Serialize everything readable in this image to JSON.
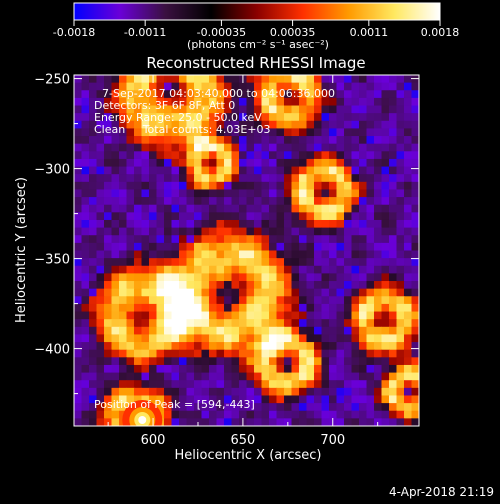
{
  "colorbar": {
    "ticks": [
      "-0.0018",
      "-0.0011",
      "-0.00035",
      "0.00035",
      "0.0011",
      "0.0018"
    ],
    "unit_label": "(photons cm⁻² s⁻¹ asec⁻²)",
    "min": -0.0018,
    "max": 0.0018,
    "colormap": "rainbow-then-hot",
    "colors": [
      "#0000ff",
      "#6a00d8",
      "#3a1040",
      "#000000",
      "#8b0000",
      "#ff3000",
      "#ff9a00",
      "#ffe860",
      "#ffffff"
    ]
  },
  "chart_data": {
    "type": "heatmap",
    "title": "Reconstructed RHESSI Image",
    "xlabel": "Heliocentric X (arcsec)",
    "ylabel": "Heliocentric Y (arcsec)",
    "xlim": [
      556,
      748
    ],
    "ylim": [
      -443,
      -248
    ],
    "x_ticks": [
      600,
      650,
      700
    ],
    "y_ticks": [
      -250,
      -300,
      -350,
      -400
    ],
    "grid": false,
    "info_lines": [
      "7-Sep-2017 04:03:40.000 to 04:06:36.000",
      "Detectors: 3F 6F 8F, Att 0",
      "Energy Range: 25.0 - 50.0 keV",
      "Clean     Total counts: 4.03E+03"
    ],
    "peak_label": "Position of Peak = [594,-443]",
    "peak": {
      "x": 594,
      "y": -443
    }
  },
  "timestamp": "4-Apr-2018 21:19"
}
